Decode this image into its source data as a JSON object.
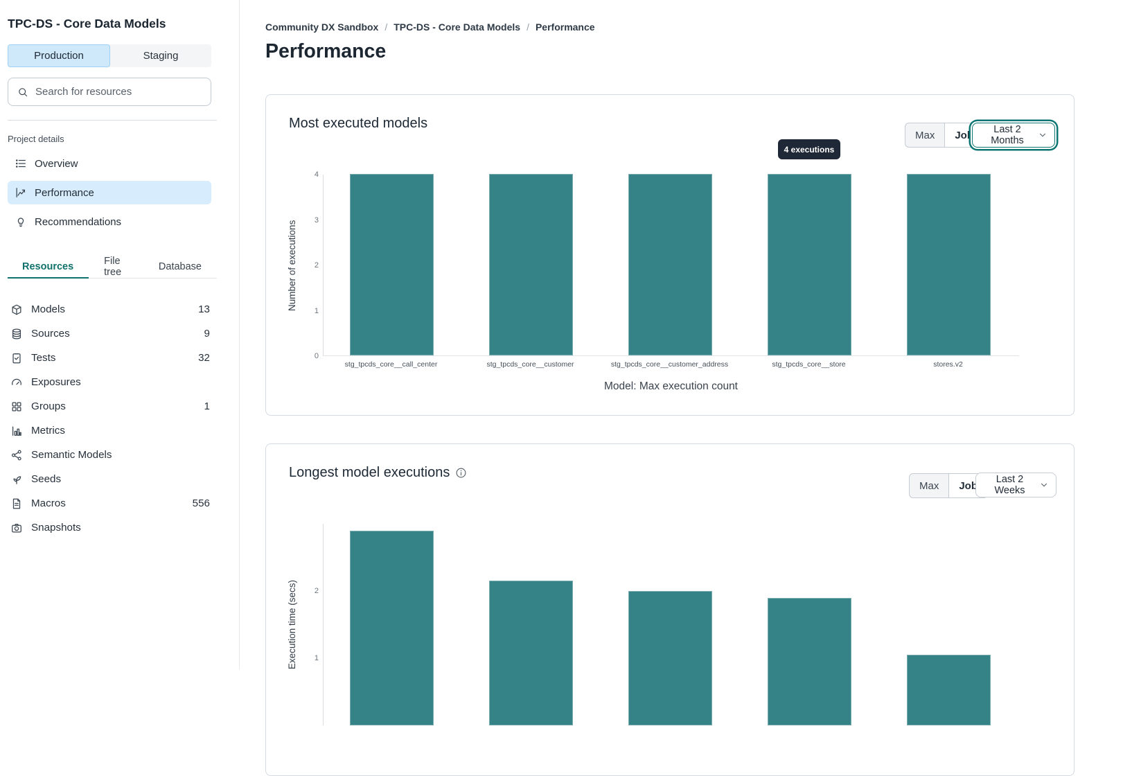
{
  "sidebar": {
    "title": "TPC-DS - Core Data Models",
    "env_tabs": [
      {
        "label": "Production",
        "active": true
      },
      {
        "label": "Staging",
        "active": false
      }
    ],
    "search": {
      "placeholder": "Search for resources"
    },
    "section_label": "Project details",
    "nav": [
      {
        "label": "Overview",
        "icon": "list",
        "active": false
      },
      {
        "label": "Performance",
        "icon": "chart",
        "active": true
      },
      {
        "label": "Recommendations",
        "icon": "bulb",
        "active": false
      }
    ],
    "resource_tabs": [
      {
        "label": "Resources",
        "active": true
      },
      {
        "label": "File tree",
        "active": false
      },
      {
        "label": "Database",
        "active": false
      }
    ],
    "resources": [
      {
        "label": "Models",
        "count": "13",
        "icon": "cube"
      },
      {
        "label": "Sources",
        "count": "9",
        "icon": "database"
      },
      {
        "label": "Tests",
        "count": "32",
        "icon": "clipboard"
      },
      {
        "label": "Exposures",
        "count": "",
        "icon": "gauge"
      },
      {
        "label": "Groups",
        "count": "1",
        "icon": "grid"
      },
      {
        "label": "Metrics",
        "count": "",
        "icon": "bars"
      },
      {
        "label": "Semantic Models",
        "count": "",
        "icon": "network"
      },
      {
        "label": "Seeds",
        "count": "",
        "icon": "seedling"
      },
      {
        "label": "Macros",
        "count": "556",
        "icon": "file"
      },
      {
        "label": "Snapshots",
        "count": "",
        "icon": "camera"
      }
    ]
  },
  "breadcrumb": [
    "Community DX Sandbox",
    "TPC-DS - Core Data Models",
    "Performance"
  ],
  "page_title": "Performance",
  "cards": [
    {
      "title": "Most executed models",
      "toggle": [
        "Max",
        "Job"
      ],
      "toggle_active": "Max",
      "range": "Last 2 Months",
      "tooltip": "4 executions"
    },
    {
      "title": "Longest model executions",
      "has_info_icon": true,
      "toggle": [
        "Max",
        "Job"
      ],
      "toggle_active": "Max",
      "range": "Last 2 Weeks"
    }
  ],
  "chart_data": [
    {
      "type": "bar",
      "title": "Most executed models",
      "categories": [
        "stg_tpcds_core__call_center",
        "stg_tpcds_core__customer",
        "stg_tpcds_core__customer_address",
        "stg_tpcds_core__store",
        "stores.v2"
      ],
      "values": [
        4,
        4,
        4,
        4,
        4
      ],
      "xlabel": "Model: Max execution count",
      "ylabel": "Number of executions",
      "ylim": [
        0,
        4
      ],
      "y_ticks": [
        0,
        1,
        2,
        3,
        4
      ],
      "annotation": "4 executions",
      "bar_color": "#358287",
      "grid": false,
      "legend": "none"
    },
    {
      "type": "bar",
      "title": "Longest model executions",
      "values": [
        2.9,
        2.15,
        2.0,
        1.9,
        1.05
      ],
      "ylabel": "Execution time (secs)",
      "ylim": [
        0,
        3
      ],
      "y_ticks": [
        1,
        2
      ],
      "bar_color": "#358287",
      "grid": false,
      "legend": "none",
      "note": "chart cut off at bottom of viewport; category labels not visible"
    }
  ],
  "colors": {
    "bar_teal": "#358287",
    "accent_teal": "#0f716b",
    "selected_blue": "#cfe9fb",
    "nav_selected_blue": "#d7ecfc",
    "tooltip_bg": "#1f2836",
    "card_border": "#d5dae0",
    "text_dark": "#1d2732"
  }
}
